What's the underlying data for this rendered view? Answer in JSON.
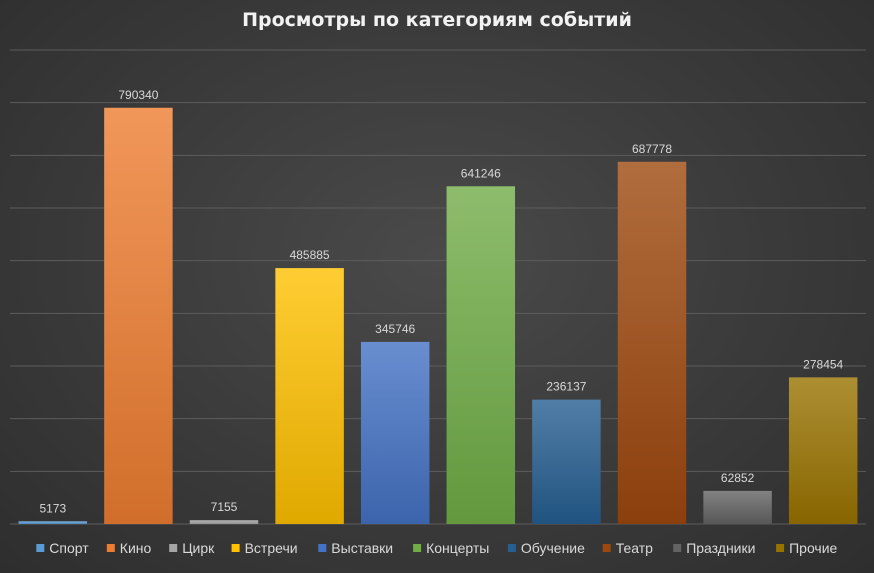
{
  "chart_data": {
    "type": "bar",
    "title": "Просмотры по категориям событий",
    "categories": [
      "Спорт",
      "Кино",
      "Цирк",
      "Встречи",
      "Выставки",
      "Концерты",
      "Обучение",
      "Театр",
      "Праздники",
      "Прочие"
    ],
    "values": [
      5173,
      790340,
      7155,
      485885,
      345746,
      641246,
      236137,
      687778,
      62852,
      278454
    ],
    "colors": [
      "#5b9bd5",
      "#ed7d31",
      "#a5a5a5",
      "#ffc000",
      "#4472c4",
      "#70ad47",
      "#255e91",
      "#9e480e",
      "#636363",
      "#997300"
    ],
    "ylim": [
      0,
      900000
    ],
    "grid": true,
    "legend_position": "bottom",
    "data_labels": true
  }
}
